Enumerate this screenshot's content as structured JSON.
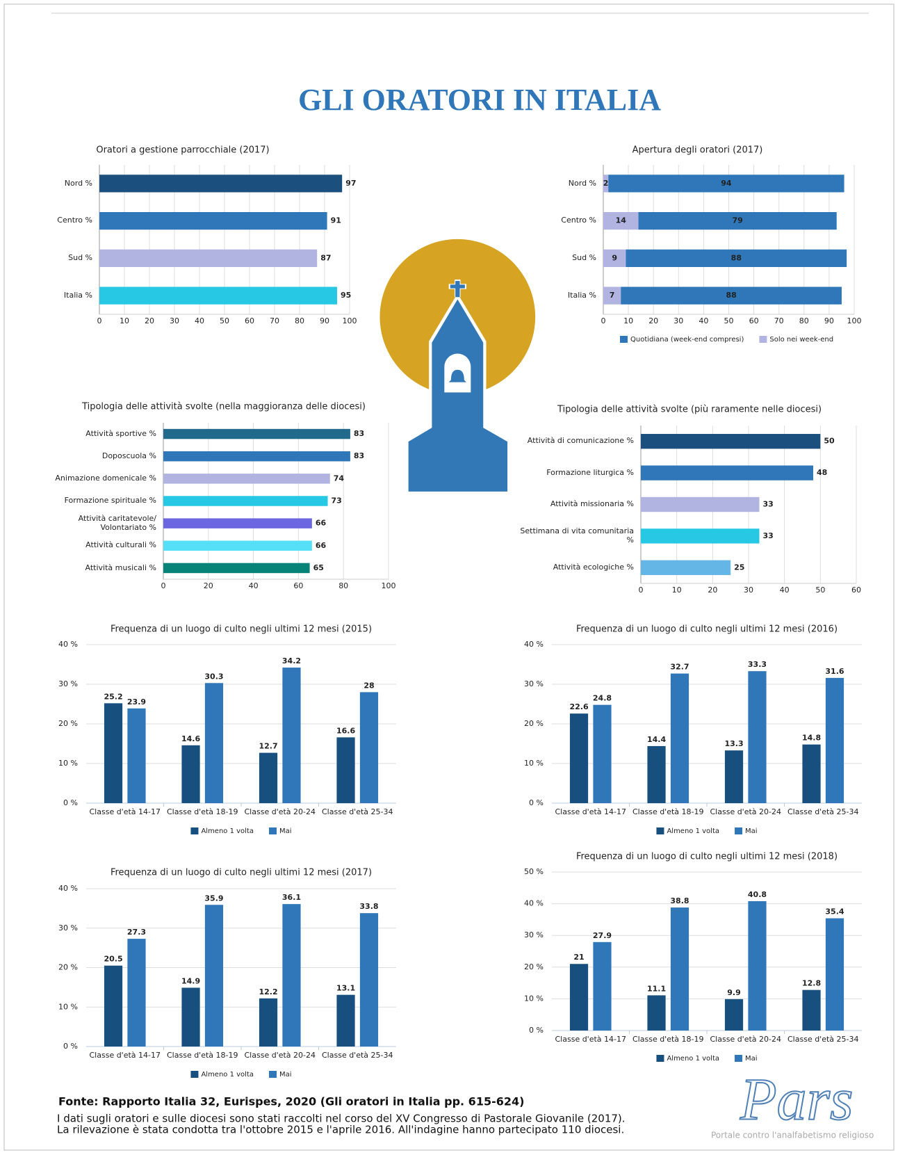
{
  "title": "GLI ORATORI IN ITALIA",
  "chart_data": [
    {
      "type": "hbar",
      "title": "Oratori a gestione parrocchiale (2017)",
      "categories": [
        "Nord %",
        "Centro %",
        "Sud %",
        "Italia %"
      ],
      "values": [
        97,
        91,
        87,
        95
      ],
      "colors": [
        "#1b4f7e",
        "#2f77b8",
        "#b1b4e1",
        "#27c8e3"
      ],
      "xlim": [
        0,
        100
      ],
      "xticks": [
        0,
        10,
        20,
        30,
        40,
        50,
        60,
        70,
        80,
        90,
        100
      ],
      "grid": true
    },
    {
      "type": "stacked_hbar",
      "title": "Apertura degli oratori (2017)",
      "categories": [
        "Nord %",
        "Centro %",
        "Sud %",
        "Italia %"
      ],
      "series": [
        {
          "name": "Quotidiana (week-end compresi)",
          "color": "#2f77b8",
          "values": [
            94,
            79,
            88,
            88
          ]
        },
        {
          "name": "Solo nei week-end",
          "color": "#b1b4e1",
          "values": [
            2,
            14,
            9,
            7
          ]
        }
      ],
      "xlim": [
        0,
        100
      ],
      "xticks": [
        0,
        10,
        20,
        30,
        40,
        50,
        60,
        70,
        80,
        90,
        100
      ],
      "grid": true,
      "legend": "bottom"
    },
    {
      "type": "hbar",
      "title": "Tipologia delle attività svolte (nella maggioranza delle diocesi)",
      "categories": [
        "Attività sportive %",
        "Doposcuola %",
        "Animazione domenicale %",
        "Formazione spirituale %",
        "Attività caritatevole/ Volontariato %",
        "Attività culturali %",
        "Attività musicali %"
      ],
      "values": [
        83,
        83,
        74,
        73,
        66,
        66,
        65
      ],
      "colors": [
        "#226a8b",
        "#2f77b8",
        "#b1b4e1",
        "#27c8e3",
        "#6c66e0",
        "#56e0f8",
        "#078378"
      ],
      "xlim": [
        0,
        100
      ],
      "xticks": [
        0,
        20,
        40,
        60,
        80,
        100
      ],
      "grid": true
    },
    {
      "type": "hbar",
      "title": "Tipologia delle attività svolte (più raramente nelle diocesi)",
      "categories": [
        "Attività di comunicazione %",
        "Formazione liturgica %",
        "Attività missionaria %",
        "Settimana di vita comunitaria %",
        "Attività ecologiche %"
      ],
      "values": [
        50,
        48,
        33,
        33,
        25
      ],
      "colors": [
        "#1b4f7e",
        "#2f77b8",
        "#b1b4e1",
        "#27c8e3",
        "#64b6e6"
      ],
      "xlim": [
        0,
        60
      ],
      "xticks": [
        0,
        10,
        20,
        30,
        40,
        50,
        60
      ],
      "grid": true
    },
    {
      "type": "bar",
      "title": "Frequenza di un luogo di culto negli ultimi 12 mesi (2015)",
      "categories": [
        "Classe d'età 14-17",
        "Classe d'età 18-19",
        "Classe d'età 20-24",
        "Classe d'età 25-34"
      ],
      "series": [
        {
          "name": "Almeno 1 volta",
          "color": "#174f7e",
          "values": [
            25.2,
            14.6,
            12.7,
            16.6
          ]
        },
        {
          "name": "Mai",
          "color": "#2f77b8",
          "values": [
            23.9,
            30.3,
            34.2,
            28
          ]
        }
      ],
      "ylim": [
        0,
        40
      ],
      "yticks": [
        {
          "value": 0,
          "label": "0 %"
        },
        {
          "value": 10,
          "label": "10 %"
        },
        {
          "value": 20,
          "label": "20 %"
        },
        {
          "value": 30,
          "label": "30 %"
        },
        {
          "value": 40,
          "label": "40 %"
        }
      ],
      "grid": true,
      "legend": "bottom"
    },
    {
      "type": "bar",
      "title": "Frequenza di un luogo di culto negli ultimi 12 mesi (2016)",
      "categories": [
        "Classe d'età 14-17",
        "Classe d'età 18-19",
        "Classe d'età 20-24",
        "Classe d'età 25-34"
      ],
      "series": [
        {
          "name": "Almeno 1 volta",
          "color": "#174f7e",
          "values": [
            22.6,
            14.4,
            13.3,
            14.8
          ]
        },
        {
          "name": "Mai",
          "color": "#2f77b8",
          "values": [
            24.8,
            32.7,
            33.3,
            31.6
          ]
        }
      ],
      "ylim": [
        0,
        40
      ],
      "yticks": [
        {
          "value": 0,
          "label": "0 %"
        },
        {
          "value": 10,
          "label": "10 %"
        },
        {
          "value": 20,
          "label": "20 %"
        },
        {
          "value": 30,
          "label": "30 %"
        },
        {
          "value": 40,
          "label": "40 %"
        }
      ],
      "grid": true,
      "legend": "bottom"
    },
    {
      "type": "bar",
      "title": "Frequenza di un luogo di culto negli ultimi 12 mesi (2017)",
      "categories": [
        "Classe d'età 14-17",
        "Classe d'età 18-19",
        "Classe d'età 20-24",
        "Classe d'età 25-34"
      ],
      "series": [
        {
          "name": "Almeno 1 volta",
          "color": "#174f7e",
          "values": [
            20.5,
            14.9,
            12.2,
            13.1
          ]
        },
        {
          "name": "Mai",
          "color": "#2f77b8",
          "values": [
            27.3,
            35.9,
            36.1,
            33.8
          ]
        }
      ],
      "ylim": [
        0,
        40
      ],
      "yticks": [
        {
          "value": 0,
          "label": "0 %"
        },
        {
          "value": 10,
          "label": "10 %"
        },
        {
          "value": 20,
          "label": "20 %"
        },
        {
          "value": 30,
          "label": "30 %"
        },
        {
          "value": 40,
          "label": "40 %"
        }
      ],
      "grid": true,
      "legend": "bottom"
    },
    {
      "type": "bar",
      "title": "Frequenza di un luogo di culto negli ultimi 12 mesi (2018)",
      "categories": [
        "Classe d'età 14-17",
        "Classe d'età 18-19",
        "Classe d'età 20-24",
        "Classe d'età 25-34"
      ],
      "series": [
        {
          "name": "Almeno 1 volta",
          "color": "#174f7e",
          "values": [
            21,
            11.1,
            9.9,
            12.8
          ]
        },
        {
          "name": "Mai",
          "color": "#2f77b8",
          "values": [
            27.9,
            38.8,
            40.8,
            35.4
          ]
        }
      ],
      "ylim": [
        0,
        50
      ],
      "yticks": [
        {
          "value": 0,
          "label": "0 %"
        },
        {
          "value": 10,
          "label": "10 %"
        },
        {
          "value": 20,
          "label": "20 %"
        },
        {
          "value": 30,
          "label": "30 %"
        },
        {
          "value": 40,
          "label": "40 %"
        },
        {
          "value": 50,
          "label": "50 %"
        }
      ],
      "grid": true,
      "legend": "bottom"
    }
  ],
  "source": "Fonte: Rapporto Italia 32, Eurispes, 2020 (Gli oratori in Italia pp. 615-624)",
  "notes": [
    "I dati sugli oratori e sulle diocesi sono stati raccolti nel corso del XV Congresso di Pastorale Giovanile (2017).",
    "La rilevazione è stata condotta tra l'ottobre 2015 e l'aprile 2016. All'indagine hanno partecipato 110 diocesi."
  ],
  "logo": {
    "name": "Pars",
    "tagline": "Portale contro l'analfabetismo religioso"
  }
}
